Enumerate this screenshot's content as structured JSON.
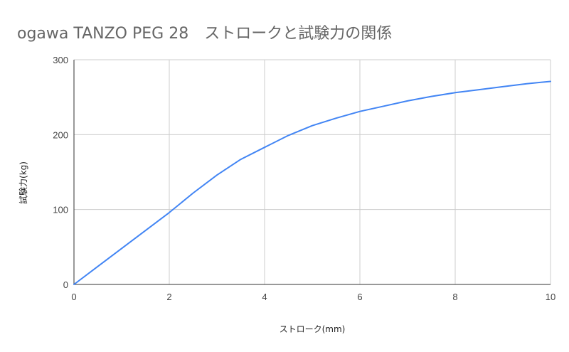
{
  "chart_data": {
    "type": "line",
    "title": "ogawa TANZO PEG 28　ストロークと試験力の関係",
    "xlabel": "ストローク(mm)",
    "ylabel": "試験力(kg)",
    "xlim": [
      0,
      10
    ],
    "ylim": [
      0,
      300
    ],
    "x_ticks": [
      "0",
      "2",
      "4",
      "6",
      "8",
      "10"
    ],
    "y_ticks": [
      "0",
      "100",
      "200",
      "300"
    ],
    "x_tick_values": [
      0,
      2,
      4,
      6,
      8,
      10
    ],
    "y_tick_values": [
      0,
      100,
      200,
      300
    ],
    "grid": true,
    "legend": "none",
    "series_color": "#4285f4",
    "series": [
      {
        "x": [
          0,
          0.5,
          1,
          1.5,
          2,
          2.5,
          3,
          3.5,
          4,
          4.5,
          5,
          5.5,
          6,
          6.5,
          7,
          7.5,
          8,
          8.5,
          9,
          9.5,
          10
        ],
        "y": [
          0,
          24,
          48,
          72,
          96,
          122,
          146,
          167,
          183,
          199,
          212,
          222,
          231,
          238,
          245,
          251,
          256,
          260,
          264,
          268,
          271
        ]
      }
    ]
  }
}
